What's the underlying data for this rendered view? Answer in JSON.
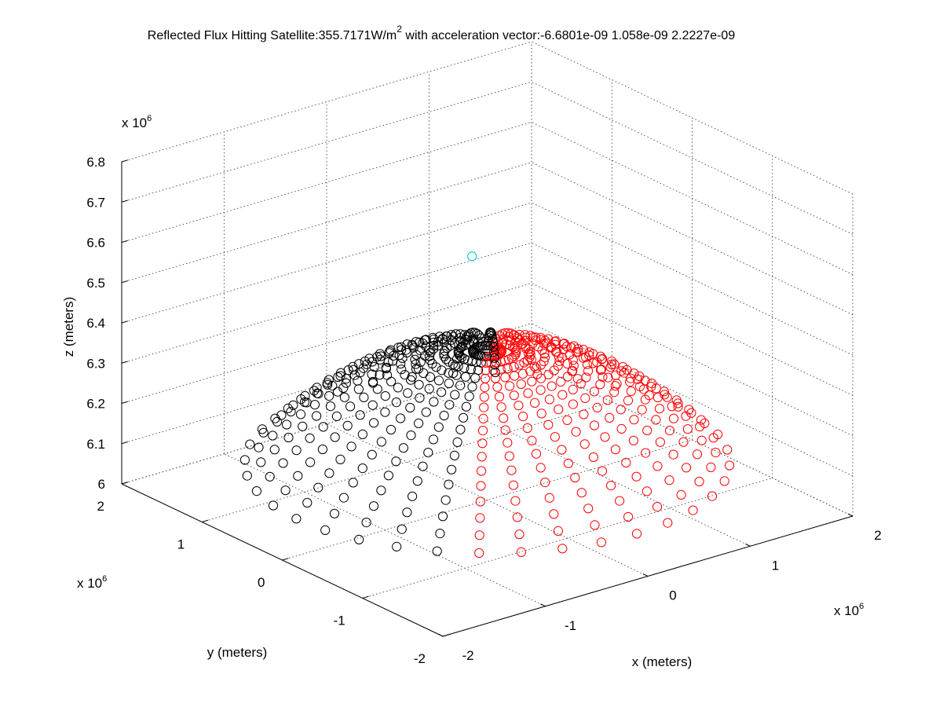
{
  "chart_data": {
    "type": "scatter3d",
    "title": {
      "prefix": "Reflected Flux Hitting Satellite:355.7171W/m",
      "superscript": "2",
      "suffix": " with acceleration vector:-6.6801e-09   1.058e-09  2.2227e-09"
    },
    "xlabel": "x (meters)",
    "ylabel": "y (meters)",
    "zlabel": "z (meters)",
    "xlim": [
      -2,
      2
    ],
    "ylim": [
      -2,
      2
    ],
    "zlim": [
      6,
      6.8
    ],
    "xticks": [
      "-2",
      "-1",
      "0",
      "1",
      "2"
    ],
    "yticks": [
      "-2",
      "-1",
      "0",
      "1",
      "2"
    ],
    "zticks": [
      "6",
      "6.1",
      "6.2",
      "6.3",
      "6.4",
      "6.5",
      "6.6",
      "6.7",
      "6.8"
    ],
    "scale_label": {
      "base": "x 10",
      "exponent": "6"
    },
    "grid": true,
    "satellite": {
      "x": -0.32,
      "y": -0.22,
      "z": 6.65,
      "color": "#00c8c8"
    },
    "earth_surface": {
      "radius": 6.371,
      "rings": 17,
      "ring_step_deg": 1.0,
      "spokes": 36,
      "colors": {
        "near_side": "#000000",
        "far_side": "#ff0000"
      }
    }
  }
}
